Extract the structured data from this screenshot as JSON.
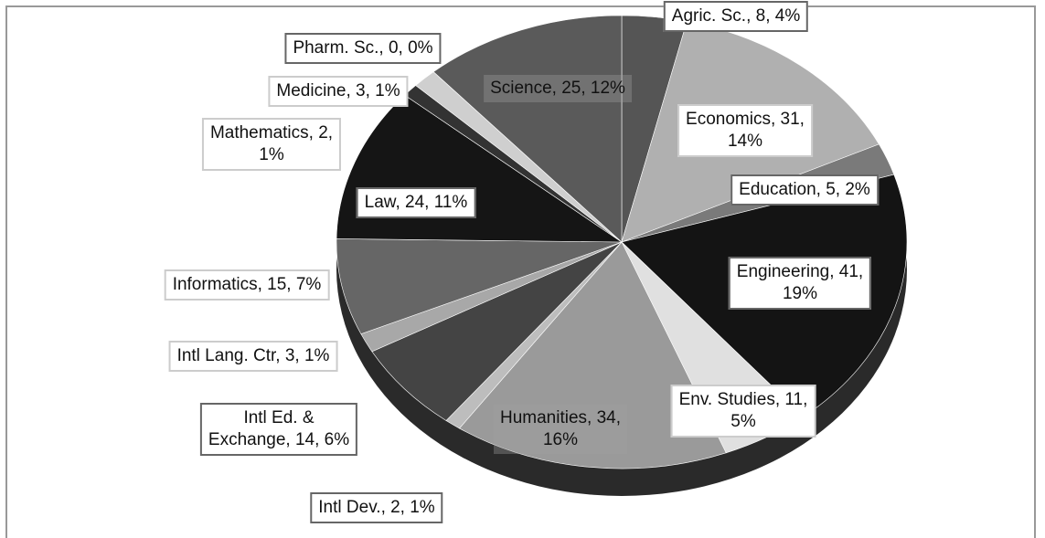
{
  "chart_data": {
    "type": "pie",
    "categories": [
      "Agric. Sc.",
      "Economics",
      "Education",
      "Engineering",
      "Env. Studies",
      "Humanities",
      "Intl Dev.",
      "Intl Ed. & Exchange",
      "Intl Lang. Ctr",
      "Informatics",
      "Law",
      "Mathematics",
      "Medicine",
      "Pharm. Sc.",
      "Science"
    ],
    "values": [
      8,
      31,
      5,
      41,
      11,
      34,
      2,
      14,
      3,
      15,
      24,
      2,
      3,
      0,
      25
    ],
    "value_labels": [
      "Agric. Sc., 8, 4%",
      "Economics, 31,\n14%",
      "Education, 5, 2%",
      "Engineering, 41,\n19%",
      "Env. Studies, 11,\n5%",
      "Humanities, 34,\n16%",
      "Intl Dev., 2, 1%",
      "Intl Ed. &\nExchange, 14, 6%",
      "Intl Lang. Ctr, 3, 1%",
      "Informatics, 15, 7%",
      "Law, 24, 11%",
      "Mathematics, 2,\n1%",
      "Medicine, 3, 1%",
      "Pharm. Sc., 0, 0%",
      "Science, 25, 12%"
    ],
    "colors": [
      "#555555",
      "#b0b0b0",
      "#7a7a7a",
      "#141414",
      "#e0e0e0",
      "#9a9a9a",
      "#bdbdbd",
      "#444444",
      "#a8a8a8",
      "#666666",
      "#151515",
      "#333333",
      "#cfcfcf",
      "#888888",
      "#5a5a5a"
    ]
  }
}
